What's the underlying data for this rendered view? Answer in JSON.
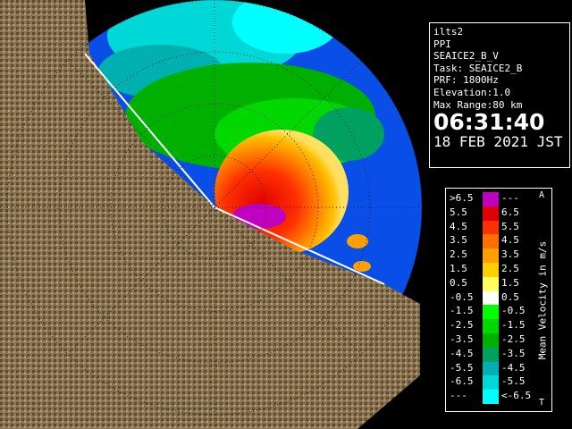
{
  "info": {
    "lines": [
      "ilts2",
      "PPI",
      "SEAICE2_B_V",
      "Task: SEAICE2_B",
      "PRF: 1800Hz",
      "Elevation:1.0",
      "Max Range:80 km"
    ],
    "time": "06:31:40",
    "date": "18 FEB 2021 JST"
  },
  "legend": {
    "title": "Mean Velocity in m/s",
    "top_mark": "A",
    "bottom_mark": "T",
    "rows": [
      {
        "left": ">6.5",
        "right": "---",
        "color": "#c000c0"
      },
      {
        "left": "5.5",
        "right": "6.5",
        "color": "#e00000"
      },
      {
        "left": "4.5",
        "right": "5.5",
        "color": "#ff3000"
      },
      {
        "left": "3.5",
        "right": "4.5",
        "color": "#ff7000"
      },
      {
        "left": "2.5",
        "right": "3.5",
        "color": "#ffa000"
      },
      {
        "left": "1.5",
        "right": "2.5",
        "color": "#ffd000"
      },
      {
        "left": "0.5",
        "right": "1.5",
        "color": "#ffff60"
      },
      {
        "left": "-0.5",
        "right": "0.5",
        "color": "#ffffff"
      },
      {
        "left": "-1.5",
        "right": "-0.5",
        "color": "#00ff00"
      },
      {
        "left": "-2.5",
        "right": "-1.5",
        "color": "#00d800"
      },
      {
        "left": "-3.5",
        "right": "-2.5",
        "color": "#00b000"
      },
      {
        "left": "-4.5",
        "right": "-3.5",
        "color": "#00a060"
      },
      {
        "left": "-5.5",
        "right": "-4.5",
        "color": "#00b0b0"
      },
      {
        "left": "-6.5",
        "right": "-5.5",
        "color": "#00d8d8"
      },
      {
        "left": "---",
        "right": "<-6.5",
        "color": "#00ffff"
      }
    ]
  }
}
